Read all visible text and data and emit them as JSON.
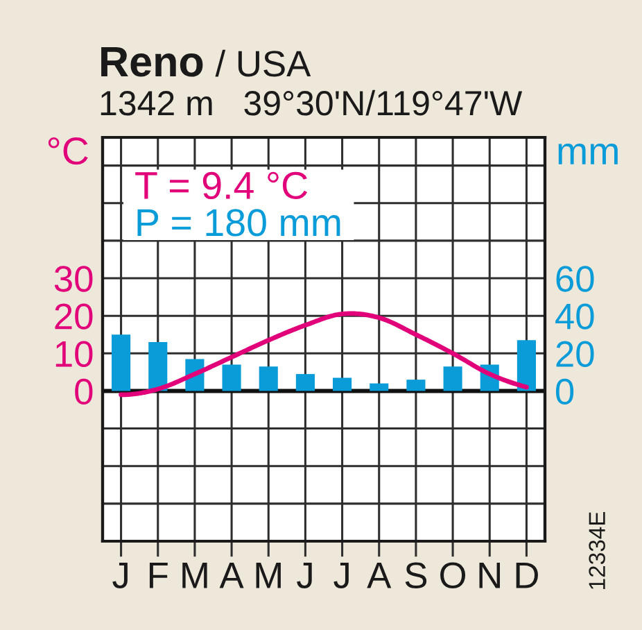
{
  "chart_data": {
    "type": "bar",
    "title": "Reno / USA",
    "subtitle": "1342 m   39°30'N/119°47'W",
    "ylabel": "°C",
    "y2label": "mm",
    "categories": [
      "J",
      "F",
      "M",
      "A",
      "M",
      "J",
      "J",
      "A",
      "S",
      "O",
      "N",
      "D"
    ],
    "series": [
      {
        "type": "line",
        "axis": "y",
        "color": "#e2007a",
        "values": [
          -1,
          0.5,
          4.5,
          9,
          13.5,
          17.5,
          20.5,
          19.5,
          15,
          10,
          4.5,
          1
        ]
      },
      {
        "axis": "y2",
        "color": "#0a9bd9",
        "values": [
          30,
          26,
          17,
          14,
          13,
          9,
          7,
          4,
          6,
          13,
          14,
          27
        ]
      }
    ],
    "ylim": [
      -40,
      67.5
    ],
    "yticks": [
      {
        "value": -30,
        "label": null
      },
      {
        "value": -20,
        "label": null
      },
      {
        "value": -10,
        "label": null
      },
      0,
      10,
      20,
      30,
      {
        "value": 40,
        "label": null
      },
      {
        "value": 50,
        "label": null
      },
      {
        "value": 60,
        "label": null
      }
    ],
    "y2lim": [
      -80,
      135
    ],
    "y2ticks": [
      0,
      20,
      40,
      60
    ],
    "ref_lines": [
      {
        "axis": "y",
        "value": 0,
        "color": "#111111"
      }
    ],
    "grid": true,
    "marker": "none",
    "line_style": "solid",
    "annotations": [
      "T = 9.4 °C",
      "P = 180 mm",
      "12334E"
    ]
  }
}
